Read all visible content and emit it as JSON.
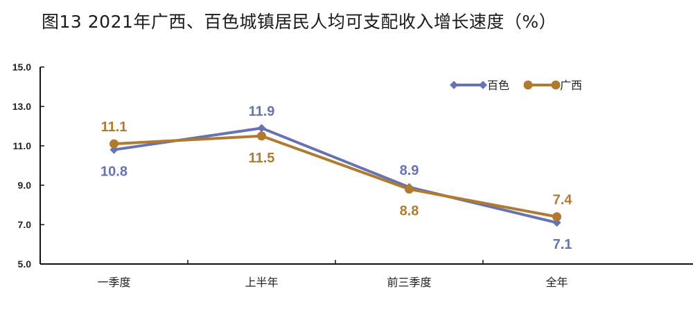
{
  "title": "图13 2021年广西、百色城镇居民人均可支配收入增长速度（%）",
  "colors": {
    "baise": "#6673b0",
    "guangxi": "#b07a30",
    "axis": "#111111"
  },
  "chart_data": {
    "type": "line",
    "title": "图13 2021年广西、百色城镇居民人均可支配收入增长速度（%）",
    "xlabel": "",
    "ylabel": "",
    "categories": [
      "一季度",
      "上半年",
      "前三季度",
      "全年"
    ],
    "series": [
      {
        "name": "百色",
        "marker": "diamond",
        "color": "#6673b0",
        "values": [
          10.8,
          11.9,
          8.9,
          7.1
        ]
      },
      {
        "name": "广西",
        "marker": "circle",
        "color": "#b07a30",
        "values": [
          11.1,
          11.5,
          8.8,
          7.4
        ]
      }
    ],
    "ylim": [
      5.0,
      15.0
    ],
    "yticks": [
      "5.0",
      "7.0",
      "9.0",
      "11.0",
      "13.0",
      "15.0"
    ],
    "grid": false,
    "legend_position": "top-right"
  },
  "legend": [
    {
      "label": "百色"
    },
    {
      "label": "广西"
    }
  ]
}
